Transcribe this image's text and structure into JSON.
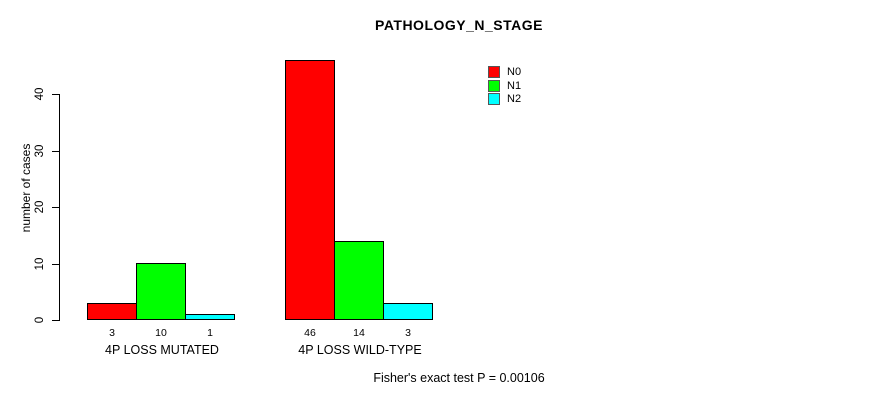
{
  "title": "PATHOLOGY_N_STAGE",
  "ylabel": "number of cases",
  "footer": "Fisher's exact test P = 0.00106",
  "legend": {
    "position": "top-right",
    "items": [
      {
        "label": "N0",
        "color": "#ff0000"
      },
      {
        "label": "N1",
        "color": "#00ff00"
      },
      {
        "label": "N2",
        "color": "#00ffff"
      }
    ]
  },
  "chart_data": {
    "type": "bar",
    "title": "PATHOLOGY_N_STAGE",
    "xlabel": "",
    "ylabel": "number of cases",
    "categories": [
      "4P LOSS MUTATED",
      "4P LOSS WILD-TYPE"
    ],
    "series": [
      {
        "name": "N0",
        "color": "#ff0000",
        "values": [
          3,
          46
        ]
      },
      {
        "name": "N1",
        "color": "#00ff00",
        "values": [
          10,
          14
        ]
      },
      {
        "name": "N2",
        "color": "#00ffff",
        "values": [
          1,
          3
        ]
      }
    ],
    "bar_value_labels": [
      [
        "3",
        "10",
        "1"
      ],
      [
        "46",
        "14",
        "3"
      ]
    ],
    "yticks": [
      0,
      10,
      20,
      30,
      40
    ],
    "ylim": [
      0,
      46
    ],
    "grid": false,
    "legend_position": "top-right",
    "annotation": "Fisher's exact test P = 0.00106"
  }
}
